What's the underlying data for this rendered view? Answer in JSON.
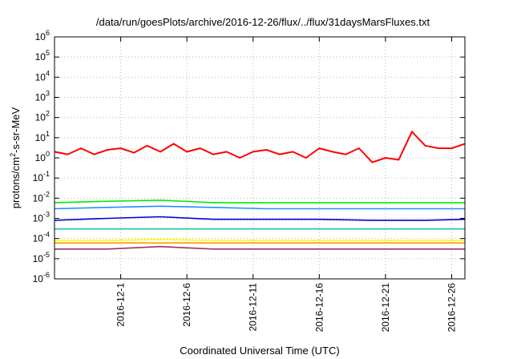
{
  "chart_data": {
    "type": "line",
    "title": "/data/run/goesPlots/archive/2016-12-26/flux/../flux/31daysMarsFluxes.txt",
    "xlabel": "Coordinated Universal Time (UTC)",
    "ylabel": {
      "prefix": "protons/cm",
      "sup": "2",
      "suffix": "-s-sr-MeV"
    },
    "x_range": [
      "2016-11-26",
      "2016-12-27"
    ],
    "xticks": [
      "2016-12-1",
      "2016-12-6",
      "2016-12-11",
      "2016-12-16",
      "2016-12-21",
      "2016-12-26"
    ],
    "y_scale": "log",
    "ylim": [
      1e-06,
      1000000.0
    ],
    "yticks": [
      {
        "base": "10",
        "exp": "-6"
      },
      {
        "base": "10",
        "exp": "-5"
      },
      {
        "base": "10",
        "exp": "-4"
      },
      {
        "base": "10",
        "exp": "-3"
      },
      {
        "base": "10",
        "exp": "-2"
      },
      {
        "base": "10",
        "exp": "-1"
      },
      {
        "base": "10",
        "exp": "0"
      },
      {
        "base": "10",
        "exp": "1"
      },
      {
        "base": "10",
        "exp": "2"
      },
      {
        "base": "10",
        "exp": "3"
      },
      {
        "base": "10",
        "exp": "4"
      },
      {
        "base": "10",
        "exp": "5"
      },
      {
        "base": "10",
        "exp": "6"
      }
    ],
    "grid": true,
    "series": [
      {
        "color": "#ff0000",
        "x": [
          "2016-11-26",
          "2016-11-27",
          "2016-11-28",
          "2016-11-29",
          "2016-11-30",
          "2016-12-01",
          "2016-12-02",
          "2016-12-03",
          "2016-12-04",
          "2016-12-05",
          "2016-12-06",
          "2016-12-07",
          "2016-12-08",
          "2016-12-09",
          "2016-12-10",
          "2016-12-11",
          "2016-12-12",
          "2016-12-13",
          "2016-12-14",
          "2016-12-15",
          "2016-12-16",
          "2016-12-17",
          "2016-12-18",
          "2016-12-19",
          "2016-12-20",
          "2016-12-21",
          "2016-12-22",
          "2016-12-23",
          "2016-12-24",
          "2016-12-25",
          "2016-12-26",
          "2016-12-27"
        ],
        "values": [
          2,
          1.5,
          3,
          1.5,
          2.5,
          3,
          1.8,
          4,
          2,
          5,
          2,
          3,
          1.5,
          2,
          1,
          2,
          2.5,
          1.5,
          2,
          1,
          3,
          2,
          1.5,
          3,
          0.6,
          1,
          0.8,
          20,
          4,
          3,
          3,
          5
        ]
      },
      {
        "color": "#00ee00",
        "x": [
          "2016-11-26",
          "2016-11-30",
          "2016-12-04",
          "2016-12-08",
          "2016-12-12",
          "2016-12-16",
          "2016-12-20",
          "2016-12-24",
          "2016-12-27"
        ],
        "values": [
          0.006,
          0.007,
          0.008,
          0.006,
          0.006,
          0.006,
          0.006,
          0.006,
          0.006
        ]
      },
      {
        "color": "#1e8fff",
        "x": [
          "2016-11-26",
          "2016-11-30",
          "2016-12-04",
          "2016-12-08",
          "2016-12-12",
          "2016-12-16",
          "2016-12-20",
          "2016-12-24",
          "2016-12-27"
        ],
        "values": [
          0.003,
          0.0035,
          0.004,
          0.0035,
          0.003,
          0.003,
          0.003,
          0.003,
          0.003
        ]
      },
      {
        "color": "#0000dd",
        "x": [
          "2016-11-26",
          "2016-11-30",
          "2016-12-04",
          "2016-12-08",
          "2016-12-12",
          "2016-12-16",
          "2016-12-20",
          "2016-12-24",
          "2016-12-27"
        ],
        "values": [
          0.0008,
          0.001,
          0.0012,
          0.0009,
          0.0009,
          0.0009,
          0.0008,
          0.0008,
          0.0009
        ]
      },
      {
        "color": "#20c0a0",
        "x": [
          "2016-11-26",
          "2016-11-30",
          "2016-12-04",
          "2016-12-08",
          "2016-12-12",
          "2016-12-16",
          "2016-12-20",
          "2016-12-24",
          "2016-12-27"
        ],
        "values": [
          0.0003,
          0.0003,
          0.0003,
          0.0003,
          0.0003,
          0.0003,
          0.0003,
          0.0003,
          0.0003
        ]
      },
      {
        "color": "#ffff00",
        "x": [
          "2016-11-26",
          "2016-11-30",
          "2016-12-04",
          "2016-12-08",
          "2016-12-12",
          "2016-12-16",
          "2016-12-20",
          "2016-12-24",
          "2016-12-27"
        ],
        "values": [
          8e-05,
          8e-05,
          9e-05,
          8e-05,
          8e-05,
          8e-05,
          8e-05,
          8e-05,
          8e-05
        ]
      },
      {
        "color": "#ff9900",
        "x": [
          "2016-11-26",
          "2016-11-30",
          "2016-12-04",
          "2016-12-08",
          "2016-12-12",
          "2016-12-16",
          "2016-12-20",
          "2016-12-24",
          "2016-12-27"
        ],
        "values": [
          6e-05,
          6e-05,
          6e-05,
          6e-05,
          6e-05,
          6e-05,
          6e-05,
          6e-05,
          6e-05
        ]
      },
      {
        "color": "#993366",
        "x": [
          "2016-11-26",
          "2016-11-30",
          "2016-12-04",
          "2016-12-08",
          "2016-12-12",
          "2016-12-16",
          "2016-12-20",
          "2016-12-24",
          "2016-12-27"
        ],
        "values": [
          3e-05,
          3e-05,
          4e-05,
          3e-05,
          3e-05,
          3e-05,
          3e-05,
          3e-05,
          3e-05
        ]
      }
    ]
  }
}
